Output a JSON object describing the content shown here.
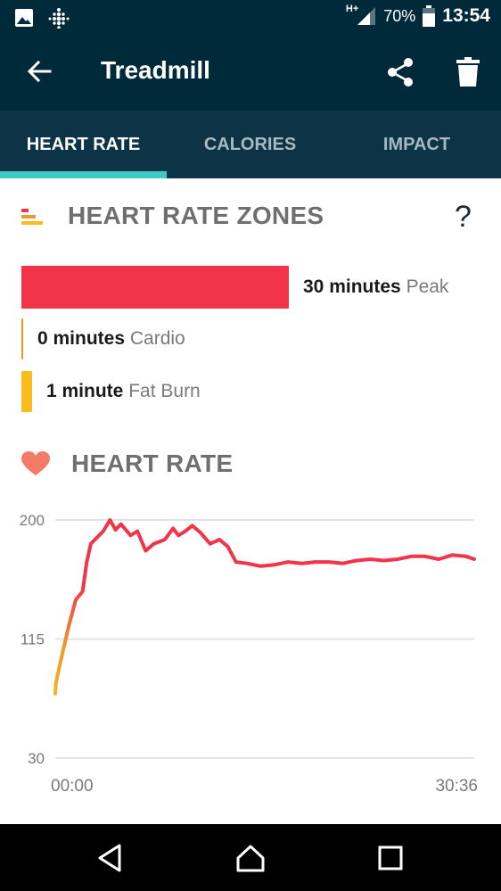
{
  "status_bar": {
    "network": "H+",
    "battery": "70%",
    "time": "13:54"
  },
  "app_bar": {
    "title": "Treadmill"
  },
  "tabs": [
    {
      "label": "HEART RATE",
      "active": true
    },
    {
      "label": "CALORIES",
      "active": false
    },
    {
      "label": "IMPACT",
      "active": false
    }
  ],
  "zones_section": {
    "title": "HEART RATE ZONES",
    "help": "?",
    "zones": [
      {
        "amount": "30 minutes",
        "name": "Peak",
        "minutes": 30,
        "color": "#f2344a"
      },
      {
        "amount": "0 minutes",
        "name": "Cardio",
        "minutes": 0,
        "color": "#f0962a"
      },
      {
        "amount": "1 minute",
        "name": "Fat Burn",
        "minutes": 1,
        "color": "#f9bc1c"
      }
    ]
  },
  "heart_rate_section": {
    "title": "HEART RATE"
  },
  "chart_data": {
    "type": "line",
    "x_tick_labels": [
      "00:00",
      "30:36"
    ],
    "y_ticks": [
      200,
      115,
      30
    ],
    "ylim": [
      30,
      200
    ],
    "xlim": [
      0,
      30.6
    ],
    "grid": true,
    "series": [
      {
        "x": [
          0,
          0.05,
          0.3,
          0.6,
          1,
          1.5,
          2,
          2.3,
          2.6,
          3,
          3.5,
          4,
          4.4,
          4.8,
          5.5,
          6,
          6.6,
          7.2,
          8,
          8.6,
          9,
          9.5,
          10,
          10.6,
          11.3,
          12,
          12.6,
          13.2,
          14,
          15,
          16,
          17,
          18,
          19,
          20,
          21,
          22,
          23,
          24,
          25,
          26,
          27,
          28,
          29,
          30,
          30.6
        ],
        "y": [
          76,
          84,
          95,
          108,
          125,
          143,
          149,
          170,
          183,
          187,
          192,
          200,
          193,
          197,
          189,
          192,
          178,
          183,
          186,
          194,
          189,
          192,
          196,
          191,
          183,
          186,
          181,
          170,
          169,
          167,
          168,
          170,
          169,
          170,
          170,
          169,
          171,
          172,
          171,
          172,
          174,
          174,
          172,
          175,
          174,
          172
        ]
      }
    ]
  }
}
